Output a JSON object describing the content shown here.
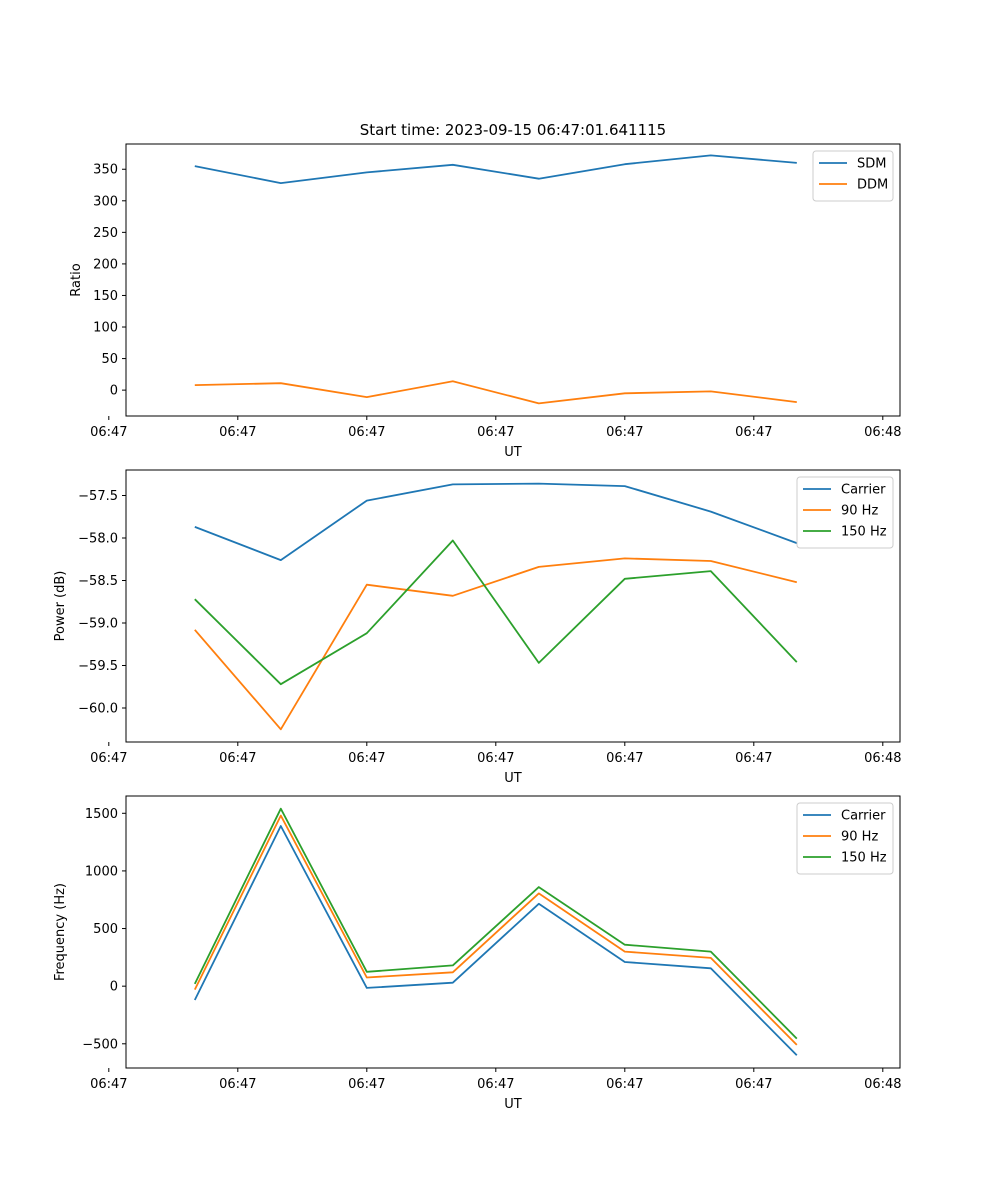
{
  "figure_title": "Start time: 2023-09-15 06:47:01.641115",
  "chart_data": [
    {
      "type": "line",
      "title": "Start time: 2023-09-15 06:47:01.641115",
      "xlabel": "UT",
      "ylabel": "Ratio",
      "x": [
        1,
        2,
        3,
        4,
        5,
        6,
        7,
        8
      ],
      "xlim": [
        0.2,
        9.2
      ],
      "x_ticks": [
        0,
        1.5,
        3,
        4.5,
        6,
        7.5,
        9
      ],
      "x_tick_labels": [
        "06:47",
        "06:47",
        "06:47",
        "06:47",
        "06:47",
        "06:47",
        "06:48"
      ],
      "ylim": [
        -41,
        390
      ],
      "y_ticks": [
        0,
        50,
        100,
        150,
        200,
        250,
        300,
        350
      ],
      "y_tick_labels": [
        "0",
        "50",
        "100",
        "150",
        "200",
        "250",
        "300",
        "350"
      ],
      "legend_position": "top-right",
      "series": [
        {
          "name": "SDM",
          "color": "#1f77b4",
          "values": [
            355,
            328,
            345,
            357,
            335,
            358,
            372,
            360
          ]
        },
        {
          "name": "DDM",
          "color": "#ff7f0e",
          "values": [
            8,
            11,
            -11,
            14,
            -21,
            -5,
            -2,
            -19
          ]
        }
      ]
    },
    {
      "type": "line",
      "title": "",
      "xlabel": "UT",
      "ylabel": "Power (dB)",
      "x": [
        1,
        2,
        3,
        4,
        5,
        6,
        7,
        8
      ],
      "xlim": [
        0.2,
        9.2
      ],
      "x_ticks": [
        0,
        1.5,
        3,
        4.5,
        6,
        7.5,
        9
      ],
      "x_tick_labels": [
        "06:47",
        "06:47",
        "06:47",
        "06:47",
        "06:47",
        "06:47",
        "06:48"
      ],
      "ylim": [
        -60.4,
        -57.2
      ],
      "y_ticks": [
        -60.0,
        -59.5,
        -59.0,
        -58.5,
        -58.0,
        -57.5
      ],
      "y_tick_labels": [
        "−60.0",
        "−59.5",
        "−59.0",
        "−58.5",
        "−58.0",
        "−57.5"
      ],
      "legend_position": "top-right",
      "series": [
        {
          "name": "Carrier",
          "color": "#1f77b4",
          "values": [
            -57.87,
            -58.26,
            -57.56,
            -57.37,
            -57.36,
            -57.39,
            -57.69,
            -58.06
          ]
        },
        {
          "name": "90 Hz",
          "color": "#ff7f0e",
          "values": [
            -59.08,
            -60.25,
            -58.55,
            -58.68,
            -58.34,
            -58.24,
            -58.27,
            -58.52
          ]
        },
        {
          "name": "150 Hz",
          "color": "#2ca02c",
          "values": [
            -58.72,
            -59.72,
            -59.12,
            -58.03,
            -59.47,
            -58.48,
            -58.39,
            -59.46
          ]
        }
      ]
    },
    {
      "type": "line",
      "title": "",
      "xlabel": "UT",
      "ylabel": "Frequency (Hz)",
      "x": [
        1,
        2,
        3,
        4,
        5,
        6,
        7,
        8
      ],
      "xlim": [
        0.2,
        9.2
      ],
      "x_ticks": [
        0,
        1.5,
        3,
        4.5,
        6,
        7.5,
        9
      ],
      "x_tick_labels": [
        "06:47",
        "06:47",
        "06:47",
        "06:47",
        "06:47",
        "06:47",
        "06:48"
      ],
      "ylim": [
        -710,
        1650
      ],
      "y_ticks": [
        -500,
        0,
        500,
        1000,
        1500
      ],
      "y_tick_labels": [
        "−500",
        "0",
        "500",
        "1000",
        "1500"
      ],
      "legend_position": "top-right",
      "series": [
        {
          "name": "Carrier",
          "color": "#1f77b4",
          "values": [
            -120,
            1390,
            -15,
            30,
            715,
            210,
            155,
            -600
          ]
        },
        {
          "name": "90 Hz",
          "color": "#ff7f0e",
          "values": [
            -30,
            1480,
            75,
            120,
            805,
            300,
            245,
            -510
          ]
        },
        {
          "name": "150 Hz",
          "color": "#2ca02c",
          "values": [
            20,
            1540,
            125,
            180,
            860,
            360,
            300,
            -455
          ]
        }
      ]
    }
  ]
}
